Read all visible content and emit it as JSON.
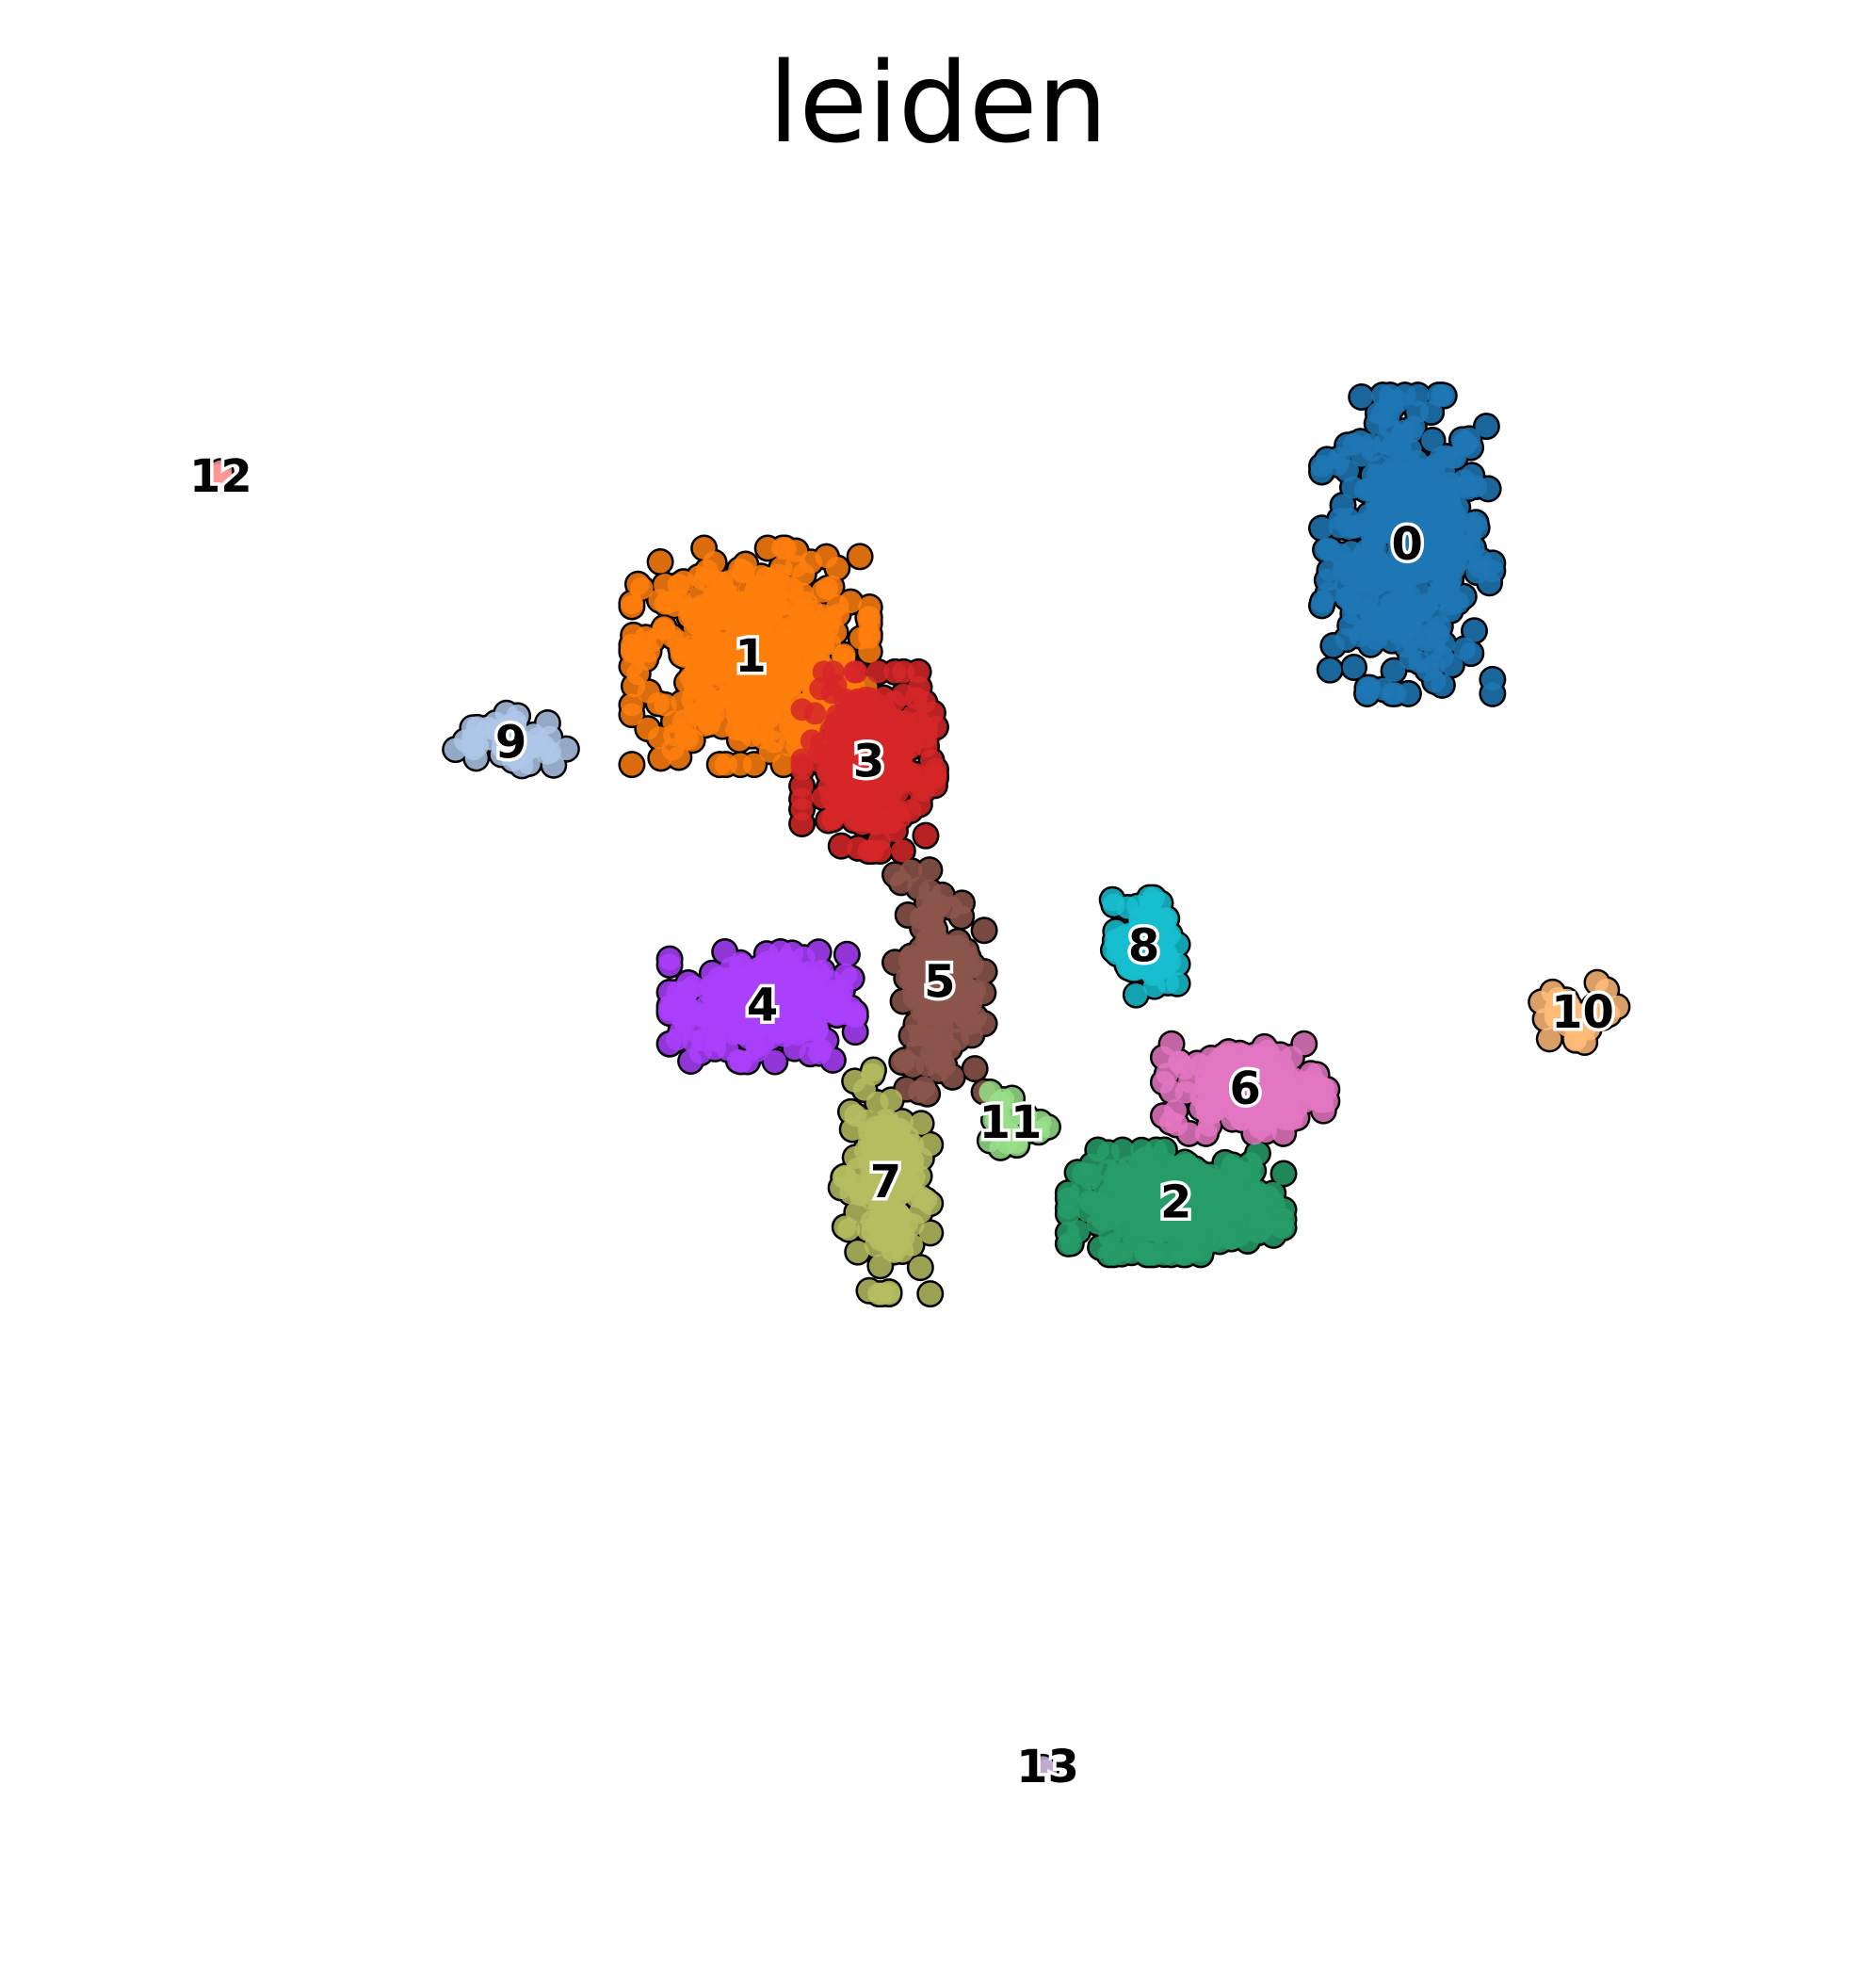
{
  "chart_data": {
    "type": "scatter",
    "title": "leiden",
    "xlabel": "",
    "ylabel": "",
    "grid": false,
    "axes_visible": false,
    "xlim": [
      0,
      100
    ],
    "ylim": [
      0,
      100
    ],
    "clusters": [
      {
        "label": "0",
        "color": "#1f77b4",
        "center": [
          77.8,
          79.0
        ],
        "spread": [
          4.6,
          8.0
        ],
        "count": 420
      },
      {
        "label": "1",
        "color": "#ff7f0e",
        "center": [
          38.9,
          72.4
        ],
        "spread": [
          6.4,
          5.8
        ],
        "count": 480
      },
      {
        "label": "2",
        "color": "#279e68",
        "center": [
          64.1,
          40.2
        ],
        "spread": [
          5.8,
          2.8
        ],
        "count": 320
      },
      {
        "label": "3",
        "color": "#d62728",
        "center": [
          45.9,
          66.2
        ],
        "spread": [
          3.6,
          4.8
        ],
        "count": 260
      },
      {
        "label": "4",
        "color": "#aa40fc",
        "center": [
          39.6,
          51.8
        ],
        "spread": [
          5.0,
          3.0
        ],
        "count": 280
      },
      {
        "label": "5",
        "color": "#8c564b",
        "center": [
          50.1,
          53.2
        ],
        "spread": [
          2.4,
          6.0
        ],
        "count": 160
      },
      {
        "label": "6",
        "color": "#e377c2",
        "center": [
          68.2,
          46.9
        ],
        "spread": [
          4.4,
          2.4
        ],
        "count": 200
      },
      {
        "label": "7",
        "color": "#b5bd61",
        "center": [
          46.9,
          41.4
        ],
        "spread": [
          2.4,
          6.0
        ],
        "count": 150
      },
      {
        "label": "8",
        "color": "#17becf",
        "center": [
          62.2,
          55.3
        ],
        "spread": [
          1.8,
          2.6
        ],
        "count": 90
      },
      {
        "label": "9",
        "color": "#aec7e8",
        "center": [
          24.7,
          67.3
        ],
        "spread": [
          3.0,
          1.6
        ],
        "count": 50
      },
      {
        "label": "10",
        "color": "#ffbb78",
        "center": [
          88.2,
          51.4
        ],
        "spread": [
          2.6,
          1.6
        ],
        "count": 40
      },
      {
        "label": "11",
        "color": "#98df8a",
        "center": [
          54.3,
          44.9
        ],
        "spread": [
          2.0,
          2.0
        ],
        "count": 22
      },
      {
        "label": "12",
        "color": "#ff9896",
        "center": [
          7.5,
          83.0
        ],
        "spread": [
          0.3,
          0.3
        ],
        "count": 3
      },
      {
        "label": "13",
        "color": "#c5b0d5",
        "center": [
          56.5,
          6.9
        ],
        "spread": [
          0.3,
          0.3
        ],
        "count": 2
      }
    ]
  }
}
